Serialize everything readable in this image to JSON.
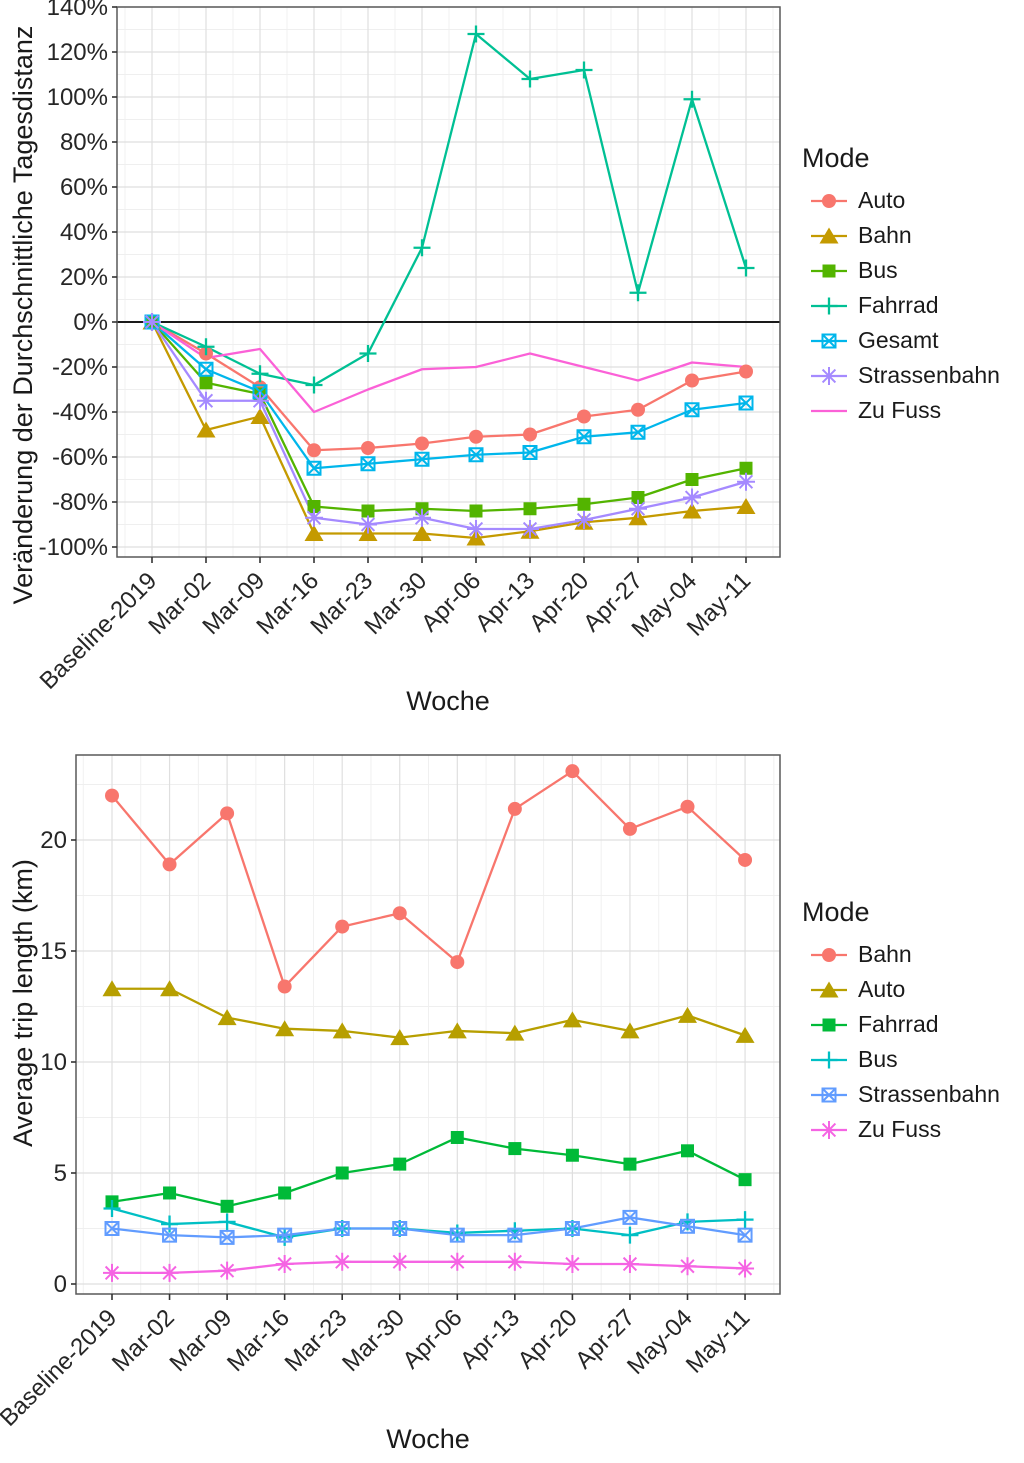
{
  "page": {
    "background": "#ffffff"
  },
  "chart_data": [
    {
      "type": "line",
      "title": "",
      "xlabel": "Woche",
      "ylabel": "Veränderung der Durchschnittliche Tagesdistanz",
      "legend_title": "Mode",
      "legend_position": "right",
      "grid": true,
      "y_suffix": "%",
      "ylim": [
        -104,
        142
      ],
      "y_ticks": [
        140,
        120,
        100,
        80,
        60,
        40,
        20,
        0,
        -20,
        -40,
        -60,
        -80,
        -100
      ],
      "zero_line": true,
      "x_tick_rotation": 45,
      "categories": [
        "Baseline-2019",
        "Mar-02",
        "Mar-09",
        "Mar-16",
        "Mar-23",
        "Mar-30",
        "Apr-06",
        "Apr-13",
        "Apr-20",
        "Apr-27",
        "May-04",
        "May-11"
      ],
      "series": [
        {
          "name": "Auto",
          "color": "#F8766D",
          "marker": "circle",
          "values": [
            0,
            -14,
            -29,
            -57,
            -56,
            -54,
            -51,
            -50,
            -42,
            -39,
            -26,
            -22
          ]
        },
        {
          "name": "Bahn",
          "color": "#C49A00",
          "marker": "triangle",
          "values": [
            0,
            -48,
            -42,
            -94,
            -94,
            -94,
            -96,
            -93,
            -89,
            -87,
            -84,
            -82
          ]
        },
        {
          "name": "Bus",
          "color": "#53B400",
          "marker": "square",
          "values": [
            0,
            -27,
            -32,
            -82,
            -84,
            -83,
            -84,
            -83,
            -81,
            -78,
            -70,
            -65
          ]
        },
        {
          "name": "Fahrrad",
          "color": "#00C094",
          "marker": "plus",
          "values": [
            0,
            -11,
            -23,
            -28,
            -14,
            33,
            128,
            108,
            112,
            13,
            99,
            24
          ]
        },
        {
          "name": "Gesamt",
          "color": "#00B6EB",
          "marker": "box-x",
          "values": [
            0,
            -21,
            -31,
            -65,
            -63,
            -61,
            -59,
            -58,
            -51,
            -49,
            -39,
            -36
          ]
        },
        {
          "name": "Strassenbahn",
          "color": "#A58AFF",
          "marker": "asterisk",
          "values": [
            0,
            -35,
            -35,
            -87,
            -90,
            -87,
            -92,
            -92,
            -88,
            -83,
            -78,
            -71
          ]
        },
        {
          "name": "Zu Fuss",
          "color": "#FB61D7",
          "marker": "none",
          "values": [
            0,
            -16,
            -12,
            -40,
            -30,
            -21,
            -20,
            -14,
            -20,
            -26,
            -18,
            -20
          ]
        }
      ]
    },
    {
      "type": "line",
      "title": "",
      "xlabel": "Woche",
      "ylabel": "Average trip length (km)",
      "legend_title": "Mode",
      "legend_position": "right",
      "grid": true,
      "y_suffix": "",
      "ylim": [
        -0.5,
        23.8
      ],
      "y_ticks": [
        0,
        5,
        10,
        15,
        20
      ],
      "zero_line": false,
      "x_tick_rotation": 45,
      "categories": [
        "Baseline-2019",
        "Mar-02",
        "Mar-09",
        "Mar-16",
        "Mar-23",
        "Mar-30",
        "Apr-06",
        "Apr-13",
        "Apr-20",
        "Apr-27",
        "May-04",
        "May-11"
      ],
      "series": [
        {
          "name": "Bahn",
          "color": "#F8766D",
          "marker": "circle",
          "values": [
            22.0,
            18.9,
            21.2,
            13.4,
            16.1,
            16.7,
            14.5,
            21.4,
            23.1,
            20.5,
            21.5,
            19.1
          ]
        },
        {
          "name": "Auto",
          "color": "#B79F00",
          "marker": "triangle",
          "values": [
            13.3,
            13.3,
            12.0,
            11.5,
            11.4,
            11.1,
            11.4,
            11.3,
            11.9,
            11.4,
            12.1,
            11.2
          ]
        },
        {
          "name": "Fahrrad",
          "color": "#00BA38",
          "marker": "square",
          "values": [
            3.7,
            4.1,
            3.5,
            4.1,
            5.0,
            5.4,
            6.6,
            6.1,
            5.8,
            5.4,
            6.0,
            4.7
          ]
        },
        {
          "name": "Bus",
          "color": "#00BFC4",
          "marker": "plus",
          "values": [
            3.4,
            2.7,
            2.8,
            2.1,
            2.5,
            2.5,
            2.3,
            2.4,
            2.5,
            2.2,
            2.8,
            2.9
          ]
        },
        {
          "name": "Strassenbahn",
          "color": "#619CFF",
          "marker": "box-x",
          "values": [
            2.5,
            2.2,
            2.1,
            2.2,
            2.5,
            2.5,
            2.2,
            2.2,
            2.5,
            3.0,
            2.6,
            2.2
          ]
        },
        {
          "name": "Zu Fuss",
          "color": "#F564E3",
          "marker": "asterisk",
          "values": [
            0.5,
            0.5,
            0.6,
            0.9,
            1.0,
            1.0,
            1.0,
            1.0,
            0.9,
            0.9,
            0.8,
            0.7
          ]
        }
      ]
    }
  ]
}
